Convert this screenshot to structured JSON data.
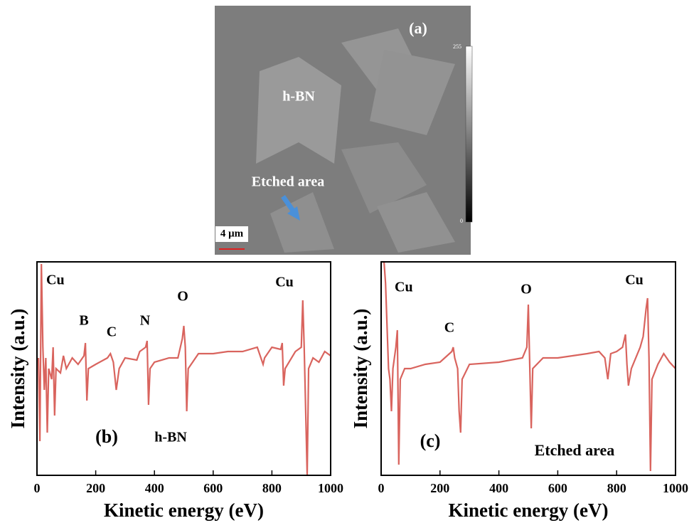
{
  "image_panel": {
    "label": "(a)",
    "region_label": "h-BN",
    "arrow_label": "Etched area",
    "scale_bar": "4 μm",
    "colorbar_max": "255",
    "colorbar_min": "0"
  },
  "chart_data": [
    {
      "type": "line",
      "x_label": "Kinetic energy (eV)",
      "y_label": "Intensity (a.u.)",
      "xlim": [
        0,
        1000
      ],
      "xticks": [
        0,
        200,
        400,
        600,
        800,
        1000
      ],
      "ylim": [
        0,
        100
      ],
      "x": [
        5,
        10,
        15,
        20,
        25,
        30,
        35,
        40,
        50,
        55,
        60,
        65,
        80,
        90,
        100,
        120,
        140,
        160,
        165,
        170,
        175,
        200,
        240,
        250,
        260,
        270,
        280,
        300,
        340,
        350,
        370,
        375,
        380,
        385,
        400,
        450,
        480,
        495,
        500,
        505,
        510,
        515,
        550,
        600,
        650,
        700,
        750,
        770,
        775,
        800,
        830,
        835,
        840,
        845,
        880,
        900,
        905,
        910,
        915,
        920,
        925,
        940,
        960,
        980,
        1000
      ],
      "series": [
        {
          "color": "#d9645e",
          "values": [
            55,
            16,
            99,
            60,
            40,
            55,
            20,
            50,
            45,
            60,
            28,
            50,
            48,
            56,
            50,
            55,
            52,
            56,
            62,
            35,
            50,
            52,
            55,
            57,
            53,
            40,
            50,
            55,
            54,
            58,
            60,
            63,
            33,
            50,
            53,
            55,
            55,
            64,
            70,
            60,
            30,
            50,
            57,
            57,
            58,
            58,
            60,
            52,
            55,
            60,
            59,
            62,
            42,
            50,
            58,
            60,
            82,
            60,
            30,
            0,
            50,
            55,
            53,
            58,
            56
          ]
        }
      ],
      "annotations": [
        {
          "text": "Cu"
        },
        {
          "text": "B"
        },
        {
          "text": "C"
        },
        {
          "text": "N"
        },
        {
          "text": "O"
        },
        {
          "text": "Cu"
        },
        {
          "text": "(b)"
        },
        {
          "text": "h-BN"
        }
      ]
    },
    {
      "type": "line",
      "x_label": "Kinetic energy (eV)",
      "y_label": "Intensity (a.u.)",
      "xlim": [
        0,
        1000
      ],
      "xticks": [
        0,
        200,
        400,
        600,
        800,
        1000
      ],
      "ylim": [
        0,
        100
      ],
      "x": [
        0,
        5,
        10,
        15,
        20,
        25,
        30,
        35,
        40,
        50,
        55,
        60,
        65,
        80,
        100,
        150,
        200,
        240,
        245,
        250,
        260,
        265,
        270,
        275,
        300,
        400,
        480,
        495,
        500,
        505,
        510,
        515,
        550,
        600,
        650,
        700,
        740,
        760,
        770,
        780,
        800,
        820,
        830,
        835,
        840,
        850,
        880,
        890,
        900,
        905,
        910,
        915,
        920,
        940,
        960,
        980,
        1000
      ],
      "series": [
        {
          "color": "#d9645e",
          "values": [
            100,
            100,
            100,
            90,
            70,
            50,
            45,
            30,
            50,
            60,
            68,
            5,
            45,
            50,
            50,
            52,
            53,
            58,
            60,
            55,
            50,
            30,
            20,
            45,
            52,
            53,
            55,
            60,
            80,
            50,
            22,
            50,
            55,
            55,
            56,
            57,
            58,
            55,
            45,
            57,
            58,
            60,
            66,
            52,
            42,
            50,
            60,
            65,
            78,
            83,
            55,
            2,
            45,
            52,
            57,
            53,
            50
          ]
        }
      ],
      "annotations": [
        {
          "text": "Cu"
        },
        {
          "text": "C"
        },
        {
          "text": "O"
        },
        {
          "text": "Cu"
        },
        {
          "text": "(c)"
        },
        {
          "text": "Etched area"
        }
      ]
    }
  ]
}
